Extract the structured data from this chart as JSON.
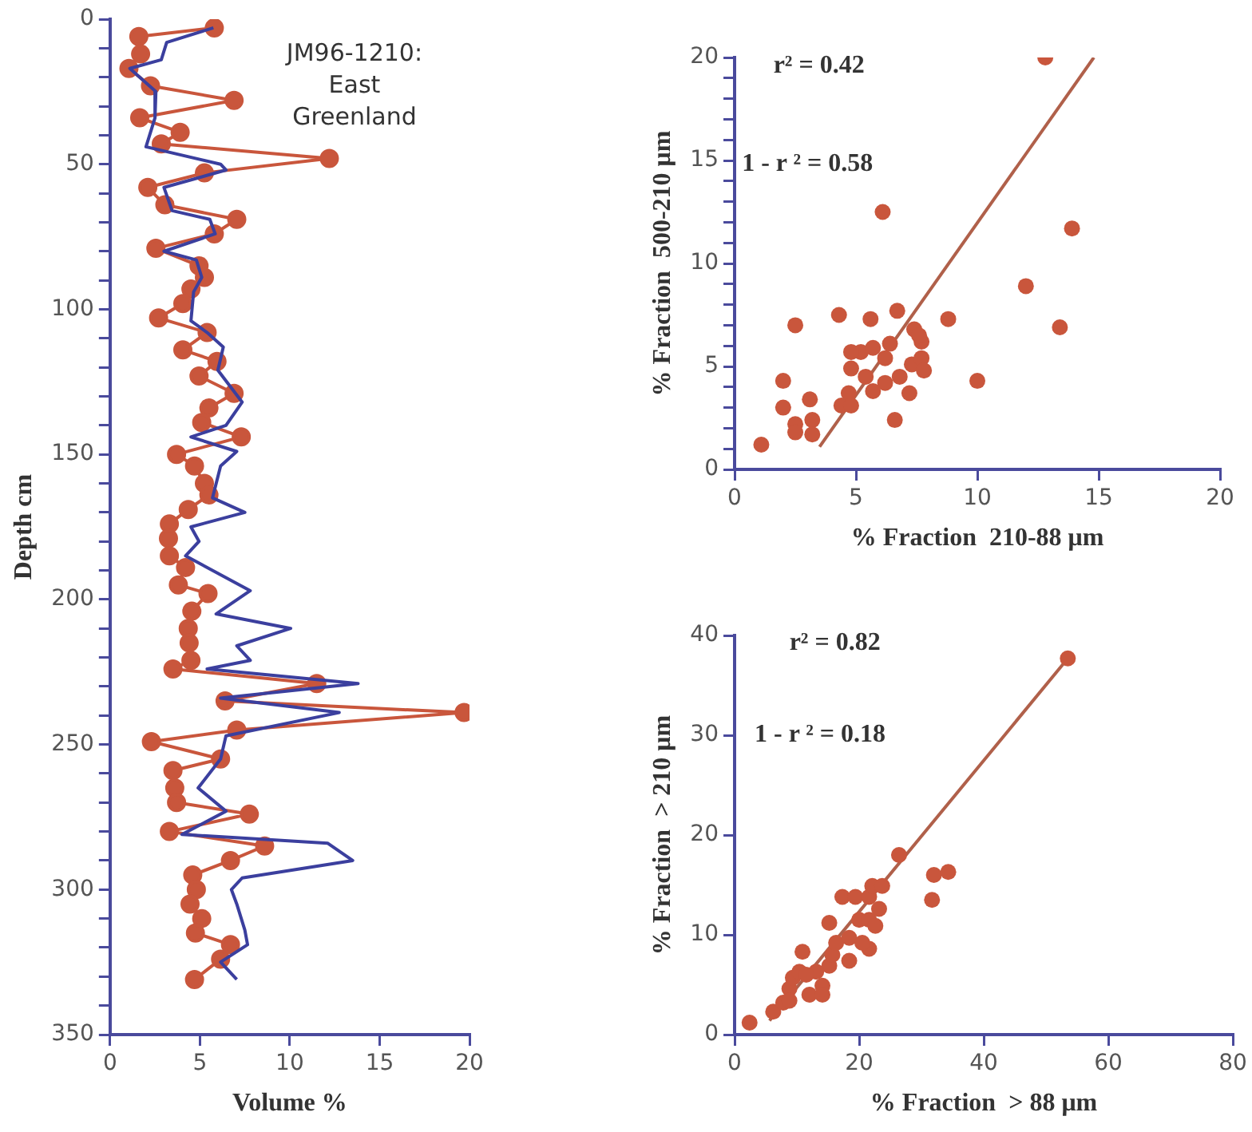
{
  "chart_data": [
    {
      "type": "line",
      "xlabel": "Volume %",
      "ylabel": "Depth cm",
      "annotations": [
        "JM96-1210: East Greenland"
      ],
      "xlim": [
        0,
        20
      ],
      "xticks": [
        0,
        5,
        10,
        15,
        20
      ],
      "ylim": [
        350,
        0
      ],
      "yticks": [
        0,
        {
          "value": 10,
          "label": null
        },
        {
          "value": 20,
          "label": null
        },
        {
          "value": 30,
          "label": null
        },
        {
          "value": 40,
          "label": null
        },
        50,
        {
          "value": 60,
          "label": null
        },
        {
          "value": 70,
          "label": null
        },
        {
          "value": 80,
          "label": null
        },
        {
          "value": 90,
          "label": null
        },
        100,
        {
          "value": 110,
          "label": null
        },
        {
          "value": 120,
          "label": null
        },
        {
          "value": 130,
          "label": null
        },
        {
          "value": 140,
          "label": null
        },
        150,
        {
          "value": 160,
          "label": null
        },
        {
          "value": 170,
          "label": null
        },
        {
          "value": 180,
          "label": null
        },
        {
          "value": 190,
          "label": null
        },
        200,
        {
          "value": 210,
          "label": null
        },
        {
          "value": 220,
          "label": null
        },
        {
          "value": 230,
          "label": null
        },
        {
          "value": 240,
          "label": null
        },
        250,
        {
          "value": 260,
          "label": null
        },
        {
          "value": 270,
          "label": null
        },
        {
          "value": 280,
          "label": null
        },
        {
          "value": 290,
          "label": null
        },
        300,
        {
          "value": 310,
          "label": null
        },
        {
          "value": 320,
          "label": null
        },
        {
          "value": 330,
          "label": null
        },
        {
          "value": 340,
          "label": null
        },
        350
      ],
      "grid": false,
      "series": [
        {
          "color": "#3b3f9e",
          "marker": "none",
          "x": [
            5.75,
            3.15,
            2.85,
            1.1,
            2.55,
            2.5,
            2.0,
            6.15,
            6.45,
            3.0,
            3.45,
            5.55,
            5.85,
            3.0,
            4.8,
            5.1,
            4.65,
            4.5,
            5.4,
            6.3,
            6.0,
            7.35,
            6.45,
            4.5,
            7.05,
            6.15,
            5.7,
            7.5,
            4.5,
            4.95,
            4.2,
            7.8,
            5.9,
            10.05,
            7.05,
            7.8,
            5.4,
            13.8,
            6.15,
            12.75,
            6.45,
            6.15,
            4.9,
            6.45,
            4.0,
            12.1,
            13.5,
            7.35,
            6.75,
            7.05,
            7.5,
            7.65,
            6.15,
            7.05
          ],
          "values": [
            3,
            8,
            14,
            17,
            25,
            34,
            44,
            50,
            52,
            58,
            66,
            69,
            74,
            80,
            83,
            89,
            94,
            104,
            108,
            113,
            121,
            132,
            140,
            144,
            149,
            154,
            165,
            170,
            175,
            180,
            185,
            197,
            205,
            210,
            216,
            221,
            224,
            229,
            234,
            239,
            247,
            255,
            265,
            273,
            281,
            284,
            290,
            296,
            300,
            305,
            314,
            319,
            325,
            331
          ]
        },
        {
          "color": "#c9563c",
          "marker": "circle",
          "x": [
            5.8,
            1.6,
            1.7,
            1.05,
            2.25,
            6.9,
            1.65,
            3.9,
            2.85,
            12.2,
            5.25,
            2.1,
            3.05,
            7.05,
            5.8,
            2.55,
            4.95,
            5.25,
            4.5,
            4.05,
            2.7,
            5.4,
            4.05,
            5.95,
            4.95,
            6.9,
            5.5,
            5.1,
            7.3,
            3.7,
            4.7,
            5.25,
            5.5,
            4.35,
            3.3,
            3.25,
            3.3,
            4.2,
            3.8,
            5.45,
            4.55,
            4.35,
            4.4,
            4.5,
            3.5,
            11.5,
            6.4,
            19.7,
            7.05,
            2.3,
            6.15,
            3.5,
            3.6,
            3.7,
            7.75,
            3.3,
            8.6,
            6.7,
            4.6,
            4.8,
            4.45,
            5.1,
            4.75,
            6.7,
            6.15,
            4.7
          ],
          "values": [
            3,
            6,
            12,
            17,
            23,
            28,
            34,
            39,
            43,
            48,
            53,
            58,
            64,
            69,
            74,
            79,
            85,
            89,
            93,
            98,
            103,
            108,
            114,
            118,
            123,
            129,
            134,
            139,
            144,
            150,
            154,
            160,
            164,
            169,
            174,
            179,
            185,
            189,
            195,
            198,
            204,
            210,
            215,
            221,
            224,
            229,
            235,
            239,
            245,
            249,
            255,
            259,
            265,
            270,
            274,
            280,
            285,
            290,
            295,
            300,
            305,
            310,
            315,
            319,
            324,
            331
          ]
        }
      ]
    },
    {
      "type": "scatter",
      "xlabel": "% Fraction  210-88 μm",
      "ylabel": "% Fraction  500-210 μm",
      "annotations": [
        "r² = 0.42",
        "1 - r ² = 0.58"
      ],
      "xlim": [
        0,
        20
      ],
      "xticks": [
        0,
        5,
        10,
        15,
        20
      ],
      "ylim": [
        0,
        20
      ],
      "yticks": [
        0,
        {
          "value": 1,
          "label": null
        },
        {
          "value": 2,
          "label": null
        },
        {
          "value": 3,
          "label": null
        },
        {
          "value": 4,
          "label": null
        },
        5,
        {
          "value": 6,
          "label": null
        },
        {
          "value": 7,
          "label": null
        },
        {
          "value": 8,
          "label": null
        },
        {
          "value": 9,
          "label": null
        },
        10,
        {
          "value": 11,
          "label": null
        },
        {
          "value": 12,
          "label": null
        },
        {
          "value": 13,
          "label": null
        },
        {
          "value": 14,
          "label": null
        },
        15,
        {
          "value": 16,
          "label": null
        },
        {
          "value": 17,
          "label": null
        },
        {
          "value": 18,
          "label": null
        },
        {
          "value": 19,
          "label": null
        },
        20
      ],
      "grid": false,
      "marker": "circle",
      "series": [
        {
          "color": "#c9563c",
          "x": [
            12.8,
            6.1,
            13.9,
            12.0,
            13.4,
            10.0,
            8.8,
            6.7,
            5.6,
            4.3,
            2.5,
            2.0,
            2.0,
            1.1,
            6.6,
            2.5,
            3.2,
            3.1,
            2.5,
            3.2,
            4.4,
            4.7,
            4.8,
            5.2,
            5.7,
            6.2,
            6.2,
            5.4,
            6.8,
            7.3,
            7.4,
            7.7,
            7.7,
            7.8,
            7.6,
            4.8,
            5.7,
            6.4,
            7.2,
            4.8
          ],
          "values": [
            20,
            12.5,
            11.7,
            8.9,
            6.9,
            4.3,
            7.3,
            7.7,
            7.3,
            7.5,
            7.0,
            4.3,
            3.0,
            1.2,
            2.4,
            2.2,
            2.4,
            3.4,
            1.8,
            1.7,
            3.1,
            3.7,
            4.9,
            5.7,
            5.9,
            5.4,
            4.2,
            4.5,
            4.5,
            5.1,
            6.8,
            6.2,
            5.4,
            4.8,
            6.5,
            3.1,
            3.8,
            6.1,
            3.7,
            5.7
          ]
        },
        {
          "type": "line",
          "color": "#b0604a",
          "marker": "none",
          "x": [
            3.5,
            14.8
          ],
          "values": [
            1.1,
            20
          ]
        }
      ]
    },
    {
      "type": "scatter",
      "xlabel": "% Fraction  > 88 μm",
      "ylabel": "% Fraction  > 210 μm",
      "annotations": [
        "r² = 0.82",
        "1 - r ² = 0.18"
      ],
      "xlim": [
        0,
        80
      ],
      "xticks": [
        0,
        20,
        40,
        60,
        80
      ],
      "ylim": [
        0,
        40
      ],
      "yticks": [
        0,
        10,
        20,
        30,
        40
      ],
      "grid": false,
      "marker": "circle",
      "series": [
        {
          "color": "#c9563c",
          "x": [
            53.5,
            26.4,
            32.0,
            34.3,
            31.7,
            2.4,
            6.2,
            7.8,
            8.8,
            9.35,
            10.4,
            10.9,
            12.0,
            14.1,
            14.1,
            15.2,
            15.7,
            16.3,
            15.2,
            17.3,
            19.4,
            18.4,
            20.0,
            21.6,
            22.1,
            21.6,
            21.6,
            22.6,
            23.2,
            23.7,
            20.5,
            18.4,
            13.1,
            11.5,
            8.8
          ],
          "values": [
            37.7,
            18,
            16,
            16.3,
            13.5,
            1.2,
            2.3,
            3.2,
            4.6,
            5.7,
            6.3,
            8.3,
            4,
            4.9,
            4,
            6.9,
            8,
            9.2,
            11.2,
            13.8,
            13.8,
            9.7,
            11.5,
            13.8,
            14.9,
            11.5,
            8.6,
            10.9,
            12.6,
            14.9,
            9.2,
            7.4,
            6.3,
            6,
            3.4
          ]
        },
        {
          "type": "line",
          "color": "#b0604a",
          "marker": "none",
          "x": [
            5.6,
            53.5
          ],
          "values": [
            1.4,
            37.7
          ]
        }
      ]
    }
  ]
}
